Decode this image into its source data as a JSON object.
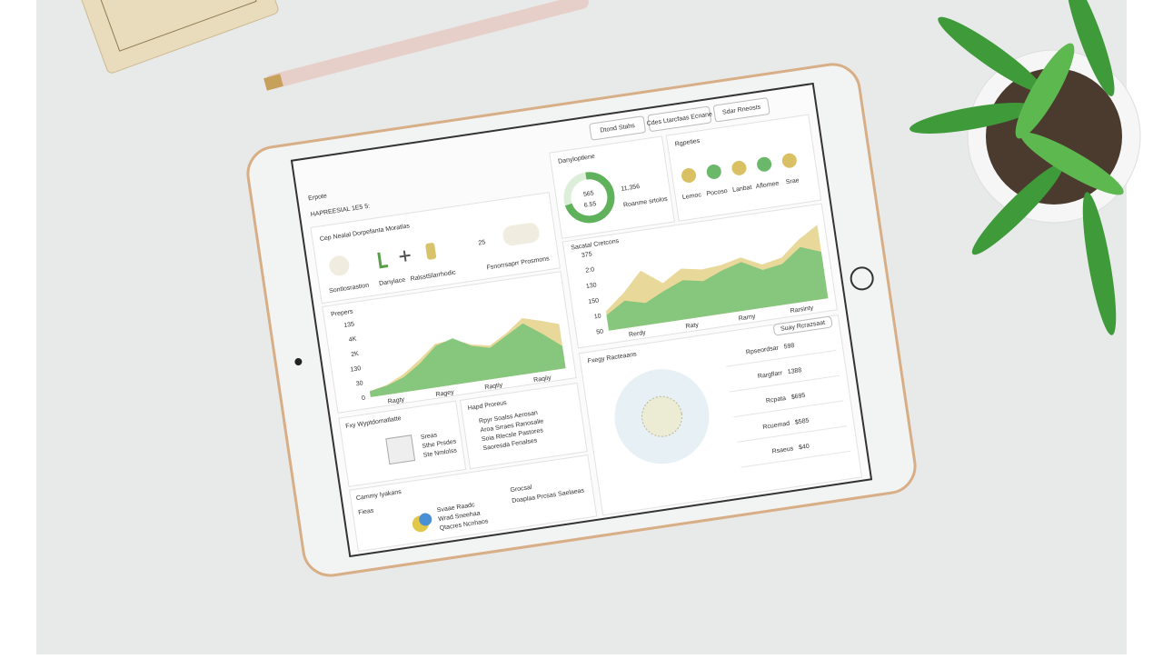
{
  "header": {
    "buttons": [
      "Dtond Stahs",
      "Cdes Ltarcfaas Ecnane",
      "Sdar Rneosts"
    ]
  },
  "title": {
    "kicker": "Erpote",
    "heading": "HAPREESIAL 1E5 5:"
  },
  "summary": {
    "title": "Cep Nealal Dorpefanta Moratlas",
    "number": "25",
    "captions": [
      "Sontlosrastion",
      "Danylace",
      "Ralsst",
      "Slarrhodic",
      "Fsnorrsaprr Prosmons"
    ]
  },
  "donut_panel": {
    "title": "Danyloptlene",
    "center": "565",
    "sub": "6.55",
    "total": "11,356",
    "caption": "Roanme srtolos",
    "percent": 72
  },
  "rgpeties": {
    "title": "Rgpeties",
    "labels": [
      "Lemoc",
      "Pocoso",
      "Lanbat",
      "Aflomee",
      "Srae"
    ]
  },
  "chart_data": [
    {
      "type": "area",
      "title": "Prepers",
      "y_labels": [
        "0",
        "30",
        "130",
        "2K",
        "4K",
        "135"
      ],
      "x_labels": [
        "Ragty",
        "Ragey",
        "Raqtiy",
        "Raqiiy"
      ],
      "x": [
        0,
        1,
        2,
        3,
        4,
        5,
        6,
        7,
        8,
        9,
        10,
        11
      ],
      "xlim": [
        0,
        11
      ],
      "ylim": [
        0,
        100
      ],
      "series": [
        {
          "color": "#e6d48e",
          "values": [
            8,
            13,
            24,
            40,
            58,
            60,
            50,
            45,
            58,
            75,
            68,
            60
          ]
        },
        {
          "color": "#7cc47a",
          "values": [
            8,
            12,
            20,
            35,
            55,
            62,
            48,
            42,
            55,
            68,
            50,
            30
          ]
        }
      ]
    },
    {
      "type": "area",
      "title": "Sacatal Cretcons",
      "y_labels": [
        "50",
        "10",
        "150",
        "130",
        "2:0",
        "375"
      ],
      "x_labels": [
        "Rerdy",
        "Raty",
        "Rarny",
        "Rarsinty"
      ],
      "x": [
        0,
        1,
        2,
        3,
        4,
        5,
        6,
        7,
        8,
        9,
        10,
        11
      ],
      "xlim": [
        0,
        11
      ],
      "ylim": [
        0,
        100
      ],
      "series": [
        {
          "color": "#e6d48e",
          "values": [
            25,
            45,
            70,
            50,
            65,
            60,
            62,
            68,
            55,
            60,
            80,
            95
          ]
        },
        {
          "color": "#7cc47a",
          "values": [
            20,
            35,
            28,
            40,
            50,
            45,
            55,
            62,
            48,
            52,
            70,
            60
          ]
        }
      ]
    }
  ],
  "boxes": {
    "wypt": {
      "title": "Fxy Wyptdomatlatte",
      "lines": [
        "Sreas",
        "Sthe Prsdes",
        "Ste Nmlolss"
      ]
    },
    "hapd": {
      "title": "Hapd Proreus",
      "lines": [
        "Rpyr Soalss Aerosan",
        "Aroa Srraes Ranosalie",
        "Soia Rlecsle Pastores",
        "Saoresda Fenalses"
      ]
    },
    "cammy": {
      "title": "Cammy Iyakans",
      "sub": "Fieas",
      "lines": [
        "Svaae Raadc",
        "Wrad Sneehaa",
        "Qtacres Ncnhaos",
        "Grocsal",
        "Doaplaa Prcsas Saelaeas"
      ]
    },
    "fxegy": {
      "title": "Fxegy Racteaans",
      "action": "Suay Rcrazsaat",
      "rows": [
        [
          "Rpseordsar",
          "598"
        ],
        [
          "Rargflarr",
          "1388"
        ],
        [
          "Rcpata",
          "$695"
        ],
        [
          "Rcuemad",
          "$585"
        ],
        [
          "Rsaeus",
          "$40"
        ]
      ]
    }
  }
}
